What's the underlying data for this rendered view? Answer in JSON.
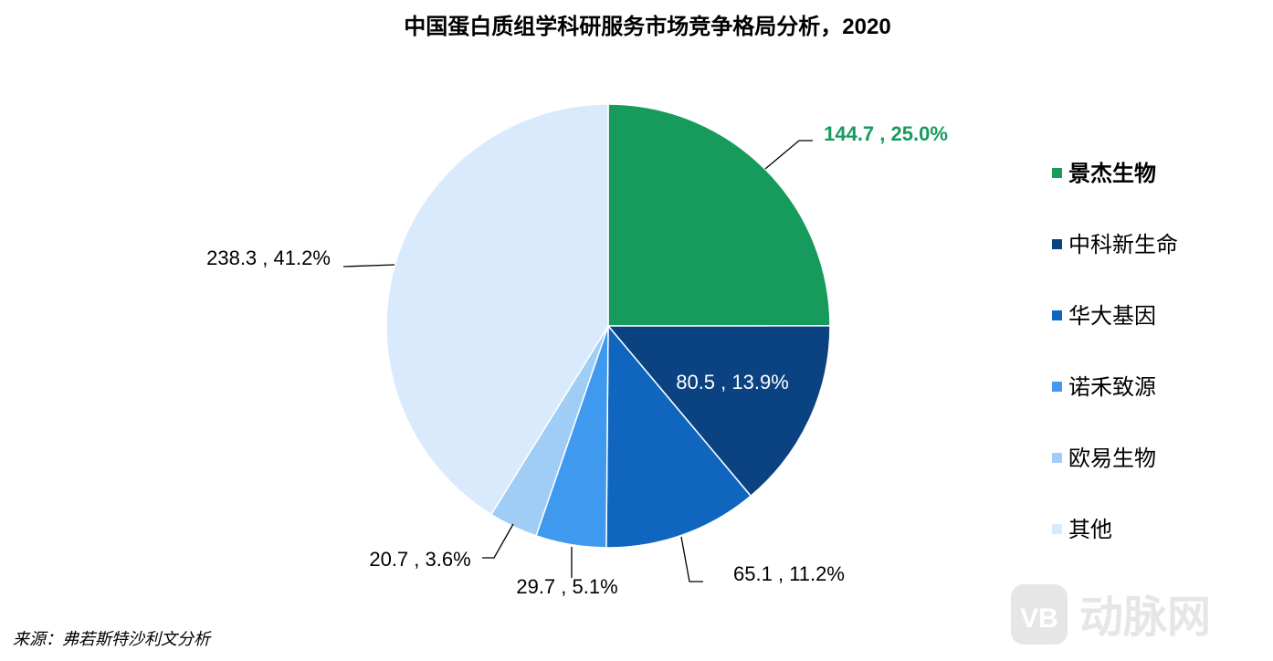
{
  "chart_data": {
    "type": "pie",
    "title": "中国蛋白质组学科研服务市场竞争格局分析，2020",
    "slices": [
      {
        "name": "景杰生物",
        "value": 144.7,
        "percent": "25.0%",
        "label": "144.7 , 25.0%",
        "color": "#169b5c",
        "label_color": "#169b5c",
        "bold": true
      },
      {
        "name": "中科新生命",
        "value": 80.5,
        "percent": "13.9%",
        "label": "80.5 , 13.9%",
        "color": "#0b4382",
        "label_color": "#ffffff",
        "bold": false
      },
      {
        "name": "华大基因",
        "value": 65.1,
        "percent": "11.2%",
        "label": "65.1 , 11.2%",
        "color": "#1066bf",
        "label_color": "#000000",
        "bold": false
      },
      {
        "name": "诺禾致源",
        "value": 29.7,
        "percent": "5.1%",
        "label": "29.7 , 5.1%",
        "color": "#3f99ef",
        "label_color": "#000000",
        "bold": false
      },
      {
        "name": "欧易生物",
        "value": 20.7,
        "percent": "3.6%",
        "label": "20.7 , 3.6%",
        "color": "#9fcdf5",
        "label_color": "#000000",
        "bold": false
      },
      {
        "name": "其他",
        "value": 238.3,
        "percent": "41.2%",
        "label": "238.3 , 41.2%",
        "color": "#d8eafb",
        "label_color": "#000000",
        "bold": false
      }
    ],
    "legend_position": "right"
  },
  "source": "来源：弗若斯特沙利文分析",
  "watermark": {
    "text": "动脉网",
    "logo_text": "VB"
  }
}
